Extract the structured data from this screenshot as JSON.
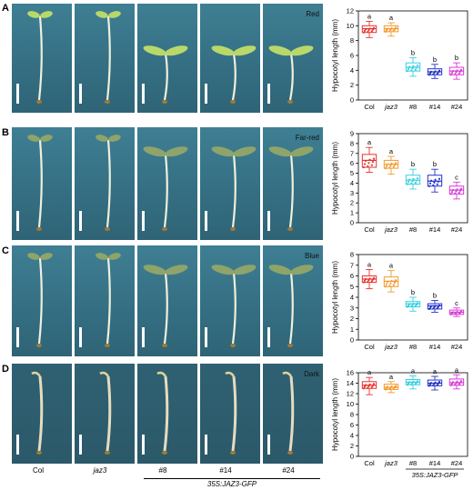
{
  "figure": {
    "rows": [
      {
        "letter": "A",
        "condition": "Red",
        "dark_bg": false
      },
      {
        "letter": "B",
        "condition": "Far-red",
        "dark_bg": false
      },
      {
        "letter": "C",
        "condition": "Blue",
        "dark_bg": false
      },
      {
        "letter": "D",
        "condition": "Dark",
        "dark_bg": true
      }
    ],
    "genotype_labels": [
      "Col",
      "jaz3",
      "#8",
      "#14",
      "#24"
    ],
    "transgenic_label": "35S:JAZ3-GFP"
  },
  "colors": {
    "Col": "#e8332f",
    "jaz3": "#f39a2d",
    "#8": "#35d0e0",
    "#14": "#2433c8",
    "#24": "#d83ad8"
  },
  "chart_data": [
    {
      "type": "box",
      "ylabel": "Hypocotyl length (mm)",
      "categories": [
        "Col",
        "jaz3",
        "#8",
        "#14",
        "#24"
      ],
      "ylim": [
        0,
        12
      ],
      "yticks": [
        0,
        2,
        4,
        6,
        8,
        10,
        12
      ],
      "boxes": [
        {
          "q1": 9.1,
          "median": 9.6,
          "q3": 10.0,
          "low": 8.4,
          "high": 10.6
        },
        {
          "q1": 9.2,
          "median": 9.6,
          "q3": 10.0,
          "low": 8.6,
          "high": 10.4
        },
        {
          "q1": 3.9,
          "median": 4.4,
          "q3": 5.0,
          "low": 3.2,
          "high": 5.7
        },
        {
          "q1": 3.4,
          "median": 3.8,
          "q3": 4.2,
          "low": 2.9,
          "high": 4.8
        },
        {
          "q1": 3.4,
          "median": 3.9,
          "q3": 4.4,
          "low": 2.8,
          "high": 5.0
        }
      ],
      "letters": [
        "a",
        "a",
        "b",
        "b",
        "b"
      ]
    },
    {
      "type": "box",
      "ylabel": "Hypocotyl length (mm)",
      "categories": [
        "Col",
        "jaz3",
        "#8",
        "#14",
        "#24"
      ],
      "ylim": [
        0,
        9
      ],
      "yticks": [
        0,
        1,
        2,
        3,
        4,
        5,
        6,
        7,
        8,
        9
      ],
      "boxes": [
        {
          "q1": 5.6,
          "median": 6.3,
          "q3": 6.9,
          "low": 5.1,
          "high": 7.6
        },
        {
          "q1": 5.5,
          "median": 5.9,
          "q3": 6.3,
          "low": 4.9,
          "high": 6.7
        },
        {
          "q1": 3.9,
          "median": 4.3,
          "q3": 4.8,
          "low": 3.4,
          "high": 5.4
        },
        {
          "q1": 3.7,
          "median": 4.2,
          "q3": 4.8,
          "low": 3.1,
          "high": 5.4
        },
        {
          "q1": 2.9,
          "median": 3.3,
          "q3": 3.7,
          "low": 2.4,
          "high": 4.1
        }
      ],
      "letters": [
        "a",
        "a",
        "b",
        "b",
        "c"
      ]
    },
    {
      "type": "box",
      "ylabel": "Hypocotyl length (mm)",
      "categories": [
        "Col",
        "jaz3",
        "#8",
        "#14",
        "#24"
      ],
      "ylim": [
        0,
        8
      ],
      "yticks": [
        0,
        1,
        2,
        3,
        4,
        5,
        6,
        7,
        8
      ],
      "boxes": [
        {
          "q1": 5.4,
          "median": 5.7,
          "q3": 6.0,
          "low": 4.8,
          "high": 6.6
        },
        {
          "q1": 5.0,
          "median": 5.5,
          "q3": 5.9,
          "low": 4.5,
          "high": 6.5
        },
        {
          "q1": 3.1,
          "median": 3.4,
          "q3": 3.6,
          "low": 2.7,
          "high": 4.0
        },
        {
          "q1": 2.9,
          "median": 3.2,
          "q3": 3.4,
          "low": 2.6,
          "high": 3.7
        },
        {
          "q1": 2.4,
          "median": 2.6,
          "q3": 2.8,
          "low": 2.2,
          "high": 3.0
        }
      ],
      "letters": [
        "a",
        "a",
        "b",
        "b",
        "c"
      ]
    },
    {
      "type": "box",
      "ylabel": "Hypocotyl length (mm)",
      "categories": [
        "Col",
        "jaz3",
        "#8",
        "#14",
        "#24"
      ],
      "ylim": [
        0,
        16
      ],
      "yticks": [
        0,
        2,
        4,
        6,
        8,
        10,
        12,
        14,
        16
      ],
      "boxes": [
        {
          "q1": 13.0,
          "median": 13.6,
          "q3": 14.3,
          "low": 11.8,
          "high": 15.1
        },
        {
          "q1": 12.8,
          "median": 13.2,
          "q3": 13.8,
          "low": 12.2,
          "high": 14.3
        },
        {
          "q1": 13.7,
          "median": 14.2,
          "q3": 14.7,
          "low": 12.9,
          "high": 15.4
        },
        {
          "q1": 13.5,
          "median": 14.0,
          "q3": 14.6,
          "low": 12.7,
          "high": 15.3
        },
        {
          "q1": 13.6,
          "median": 14.1,
          "q3": 14.8,
          "low": 12.9,
          "high": 15.6
        }
      ],
      "letters": [
        "a",
        "a",
        "a",
        "a",
        "a"
      ]
    }
  ]
}
